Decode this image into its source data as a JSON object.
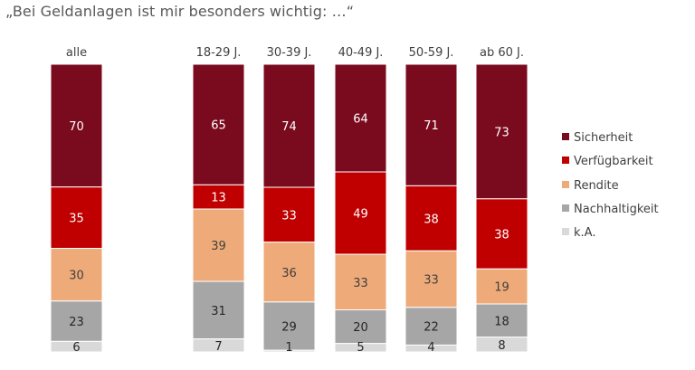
{
  "chart_data": {
    "type": "bar",
    "stacked": true,
    "orientation": "vertical",
    "title": "„Bei Geldanlagen ist mir besonders wichtig: …“",
    "xlabel": "",
    "ylabel": "",
    "categories": [
      "alle",
      "18-29 J.",
      "30-39 J.",
      "40-49 J.",
      "50-59 J.",
      "ab 60 J."
    ],
    "series": [
      {
        "name": "Sicherheit",
        "color": "#7a0a1e",
        "label_color": "#ffffff",
        "values": [
          70,
          65,
          74,
          64,
          71,
          73
        ]
      },
      {
        "name": "Verfügbarkeit",
        "color": "#c00000",
        "label_color": "#ffffff",
        "values": [
          35,
          13,
          33,
          49,
          38,
          38
        ]
      },
      {
        "name": "Rendite",
        "color": "#eeaa78",
        "label_color": "#404040",
        "values": [
          30,
          39,
          36,
          33,
          33,
          19
        ]
      },
      {
        "name": "Nachhaltigkeit",
        "color": "#a6a6a6",
        "label_color": "#262626",
        "values": [
          23,
          31,
          29,
          20,
          22,
          18
        ]
      },
      {
        "name": "k.A.",
        "color": "#d9d9d9",
        "label_color": "#262626",
        "values": [
          6,
          7,
          1,
          5,
          4,
          8
        ]
      }
    ],
    "grid": false,
    "legend": "right",
    "data_labels": true
  }
}
